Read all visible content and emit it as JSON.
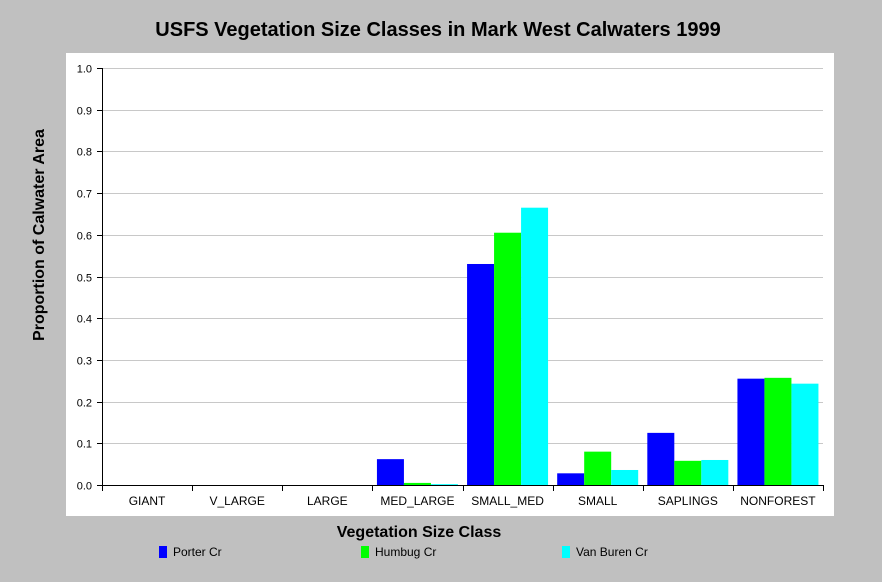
{
  "chart_data": {
    "type": "bar",
    "title": "USFS Vegetation Size Classes in Mark West Calwaters 1999",
    "xlabel": "Vegetation Size Class",
    "ylabel": "Proportion of Calwater Area",
    "ylim": [
      0,
      1.0
    ],
    "yticks": [
      "0.0",
      "0.1",
      "0.2",
      "0.3",
      "0.4",
      "0.5",
      "0.6",
      "0.7",
      "0.8",
      "0.9",
      "1.0"
    ],
    "grid": true,
    "legend_position": "bottom",
    "categories": [
      "GIANT",
      "V_LARGE",
      "LARGE",
      "MED_LARGE",
      "SMALL_MED",
      "SMALL",
      "SAPLINGS",
      "NONFOREST"
    ],
    "series": [
      {
        "name": "Porter Cr",
        "color": "#0000ff",
        "values": [
          0,
          0,
          0,
          0.062,
          0.53,
          0.028,
          0.125,
          0.255
        ]
      },
      {
        "name": "Humbug Cr",
        "color": "#00ff00",
        "values": [
          0,
          0,
          0,
          0.005,
          0.605,
          0.08,
          0.058,
          0.257
        ]
      },
      {
        "name": "Van Buren Cr",
        "color": "#00ffff",
        "values": [
          0,
          0,
          0,
          0.002,
          0.665,
          0.036,
          0.06,
          0.243
        ]
      }
    ]
  }
}
